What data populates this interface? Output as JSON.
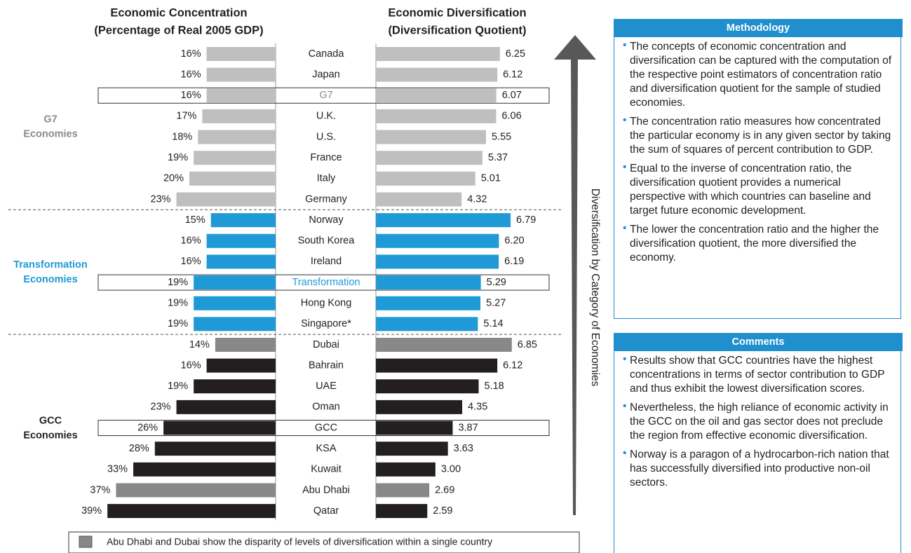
{
  "chart_data": {
    "type": "bar",
    "categories": [
      "Canada",
      "Japan",
      "G7",
      "U.K.",
      "U.S.",
      "France",
      "Italy",
      "Germany",
      "Norway",
      "South Korea",
      "Ireland",
      "Transformation",
      "Hong Kong",
      "Singapore*",
      "Dubai",
      "Bahrain",
      "UAE",
      "Oman",
      "GCC",
      "KSA",
      "Kuwait",
      "Abu Dhabi",
      "Qatar"
    ],
    "colors": [
      "#bfbfbf",
      "#bfbfbf",
      "#bfbfbf",
      "#bfbfbf",
      "#bfbfbf",
      "#bfbfbf",
      "#bfbfbf",
      "#bfbfbf",
      "#1f9ad6",
      "#1f9ad6",
      "#1f9ad6",
      "#1f9ad6",
      "#1f9ad6",
      "#1f9ad6",
      "#888888",
      "#231f20",
      "#231f20",
      "#231f20",
      "#231f20",
      "#231f20",
      "#231f20",
      "#888888",
      "#231f20"
    ],
    "highlight": [
      2,
      11,
      18
    ],
    "groups": [
      {
        "lines": [
          "G7",
          "Economies"
        ],
        "color": "#8a8a8a"
      },
      {
        "lines": [
          "Transformation",
          "Economies"
        ],
        "color": "#1f9ad6"
      },
      {
        "lines": [
          "GCC",
          "Economies"
        ],
        "color": "#231f20"
      }
    ],
    "series": [
      {
        "name": "Economic Concentration",
        "subtitle": "(Percentage of Real 2005 GDP)",
        "xlim": [
          0,
          40
        ],
        "values": [
          16,
          16,
          16,
          17,
          18,
          19,
          20,
          23,
          15,
          16,
          16,
          19,
          19,
          19,
          14,
          16,
          19,
          23,
          26,
          28,
          33,
          37,
          39
        ],
        "value_labels": [
          "16%",
          "16%",
          "16%",
          "17%",
          "18%",
          "19%",
          "20%",
          "23%",
          "15%",
          "16%",
          "16%",
          "19%",
          "19%",
          "19%",
          "14%",
          "16%",
          "19%",
          "23%",
          "26%",
          "28%",
          "33%",
          "37%",
          "39%"
        ]
      },
      {
        "name": "Economic Diversification",
        "subtitle": "(Diversification Quotient)",
        "xlim": [
          0,
          7
        ],
        "values": [
          6.25,
          6.12,
          6.07,
          6.06,
          5.55,
          5.37,
          5.01,
          4.32,
          6.79,
          6.2,
          6.19,
          5.29,
          5.27,
          5.14,
          6.85,
          6.12,
          5.18,
          4.35,
          3.87,
          3.63,
          3.0,
          2.69,
          2.59
        ],
        "value_labels": [
          "6.25",
          "6.12",
          "6.07",
          "6.06",
          "5.55",
          "5.37",
          "5.01",
          "4.32",
          "6.79",
          "6.20",
          "6.19",
          "5.29",
          "5.27",
          "5.14",
          "6.85",
          "6.12",
          "5.18",
          "4.35",
          "3.87",
          "3.63",
          "3.00",
          "2.69",
          "2.59"
        ]
      }
    ],
    "arrow_label": "Diversification by Category of Economies",
    "footnote": "Abu Dhabi and Dubai show the disparity of levels of diversification within a single country"
  },
  "methodology": {
    "title": "Methodology",
    "bullets": [
      "The concepts of economic concentration and diversification can be captured with the computation of the respective point estimators of concentration ratio and diversification quotient for the sample of studied economies.",
      "The concentration ratio measures how concentrated the particular economy is in any given sector by taking the sum of squares of percent contribution to GDP.",
      "Equal to the inverse of concentration ratio, the diversification quotient provides a numerical perspective with which countries can baseline and target future economic development.",
      "The lower the concentration ratio and the higher the diversification quotient, the more diversified the economy."
    ]
  },
  "comments": {
    "title": "Comments",
    "bullets": [
      "Results show that GCC countries have the highest concentrations in terms of sector contribution to GDP and thus exhibit the lowest diversification scores.",
      "Nevertheless, the high reliance of economic activity in the GCC on the oil and gas sector does not preclude the region from effective economic diversification.",
      "Norway is a paragon of a hydrocarbon-rich nation that has successfully diversified into productive non-oil sectors."
    ]
  }
}
